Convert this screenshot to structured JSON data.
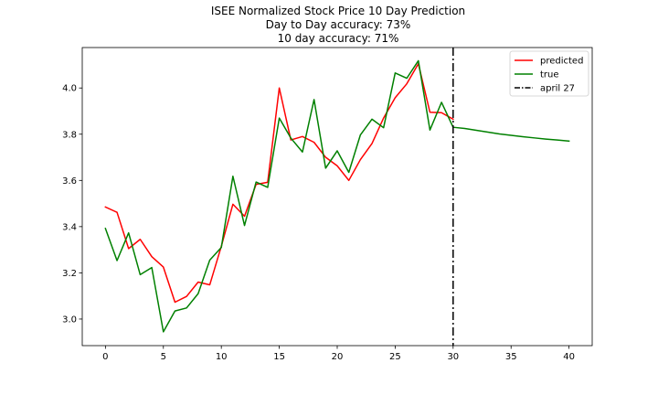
{
  "chart_data": {
    "type": "line",
    "title": "ISEE Normalized Stock Price 10 Day Prediction",
    "subtitle_lines": [
      "Day to Day accuracy: 73%",
      "10 day accuracy: 71%"
    ],
    "xlabel": "",
    "ylabel": "",
    "xlim": [
      -2,
      42
    ],
    "ylim": [
      2.885,
      4.175
    ],
    "xticks": [
      0,
      5,
      10,
      15,
      20,
      25,
      30,
      35,
      40
    ],
    "yticks": [
      3.0,
      3.2,
      3.4,
      3.6,
      3.8,
      4.0
    ],
    "ytick_labels": [
      "3.0",
      "3.2",
      "3.4",
      "3.6",
      "3.8",
      "4.0"
    ],
    "grid": false,
    "legend_position": "top-right",
    "series": [
      {
        "name": "predicted",
        "color": "#ff0000",
        "x": [
          0,
          1,
          2,
          3,
          4,
          5,
          6,
          7,
          8,
          9,
          10,
          11,
          12,
          13,
          14,
          15,
          16,
          17,
          18,
          19,
          20,
          21,
          22,
          23,
          24,
          25,
          26,
          27,
          28,
          29,
          30
        ],
        "y": [
          3.485,
          3.462,
          3.305,
          3.345,
          3.27,
          3.225,
          3.073,
          3.098,
          3.16,
          3.148,
          3.315,
          3.497,
          3.445,
          3.583,
          3.592,
          4.0,
          3.775,
          3.79,
          3.765,
          3.7,
          3.663,
          3.6,
          3.69,
          3.76,
          3.87,
          3.958,
          4.018,
          4.105,
          3.895,
          3.893,
          3.865
        ]
      },
      {
        "name": "true",
        "color": "#008000",
        "x": [
          0,
          1,
          2,
          3,
          4,
          5,
          6,
          7,
          8,
          9,
          10,
          11,
          12,
          13,
          14,
          15,
          16,
          17,
          18,
          19,
          20,
          21,
          22,
          23,
          24,
          25,
          26,
          27,
          28,
          29,
          30,
          31,
          32,
          33,
          34,
          35,
          36,
          37,
          38,
          39,
          40
        ],
        "y": [
          3.392,
          3.253,
          3.373,
          3.192,
          3.223,
          2.945,
          3.035,
          3.048,
          3.11,
          3.255,
          3.31,
          3.618,
          3.405,
          3.593,
          3.57,
          3.87,
          3.783,
          3.723,
          3.95,
          3.653,
          3.728,
          3.635,
          3.797,
          3.865,
          3.828,
          4.065,
          4.042,
          4.118,
          3.818,
          3.938,
          3.83,
          3.825,
          3.817,
          3.809,
          3.801,
          3.795,
          3.789,
          3.784,
          3.779,
          3.775,
          3.77
        ]
      }
    ],
    "vline": {
      "name": "april 27",
      "x": 30,
      "color": "#000000",
      "style": "dashdot"
    }
  }
}
